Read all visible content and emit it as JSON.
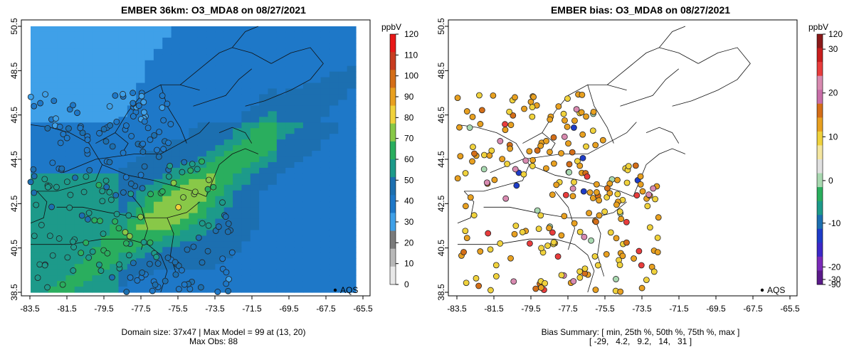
{
  "left_panel": {
    "title": "EMBER 36km: O3_MDA8 on 08/27/2021",
    "footer_line1": "Domain size: 37x47 | Max Model = 99 at (13, 20)",
    "footer_line2": "Max Obs: 88",
    "legend_title": "ppbV",
    "legend_ticks": [
      "0",
      "10",
      "20",
      "30",
      "40",
      "50",
      "60",
      "70",
      "80",
      "90",
      "100",
      "110",
      "120"
    ],
    "legend_colors": [
      "#e8e8e8",
      "#b8b8b8",
      "#7a7a7a",
      "#3fa0e8",
      "#1e78c8",
      "#1c6fb0",
      "#1d9a8a",
      "#2aae5e",
      "#88c848",
      "#f0d23c",
      "#e8a020",
      "#d46e18",
      "#c83c20",
      "#e81818"
    ],
    "points_label": "AQS"
  },
  "right_panel": {
    "title": "EMBER bias: O3_MDA8 on 08/27/2021",
    "footer_line1": "Bias Summary: [ min, 25th %, 50th %, 75th %, max ]",
    "footer_line2": "[ -29,   4.2,   9.2,   14,   31 ]",
    "legend_title": "ppbV",
    "legend_ticks_right": [
      "120",
      "30",
      "20",
      "10",
      "0",
      "-10",
      "-20",
      "-30",
      "-90"
    ],
    "legend_colors": [
      "#8b1a1a",
      "#c81e1e",
      "#e83c3c",
      "#d88ab0",
      "#c86ea8",
      "#d46e18",
      "#e8a020",
      "#f0d23c",
      "#f4e6a0",
      "#e0e0e0",
      "#a8d8b0",
      "#2aae5e",
      "#1d9a8a",
      "#1c6fb0",
      "#1e3cc8",
      "#3c28c8",
      "#7a2ab8",
      "#5a1a8a"
    ],
    "points_label": "AQS"
  },
  "axes": {
    "y_ticks": [
      "50.5",
      "48.5",
      "46.5",
      "44.5",
      "42.5",
      "40.5",
      "38.5"
    ],
    "x_ticks": [
      "-83.5",
      "-81.5",
      "-79.5",
      "-77.5",
      "-75.5",
      "-73.5",
      "-71.5",
      "-69.5",
      "-67.5",
      "-65.5"
    ],
    "lon_range": [
      -84.5,
      -65.0
    ],
    "lat_range": [
      38.5,
      50.5
    ]
  }
}
